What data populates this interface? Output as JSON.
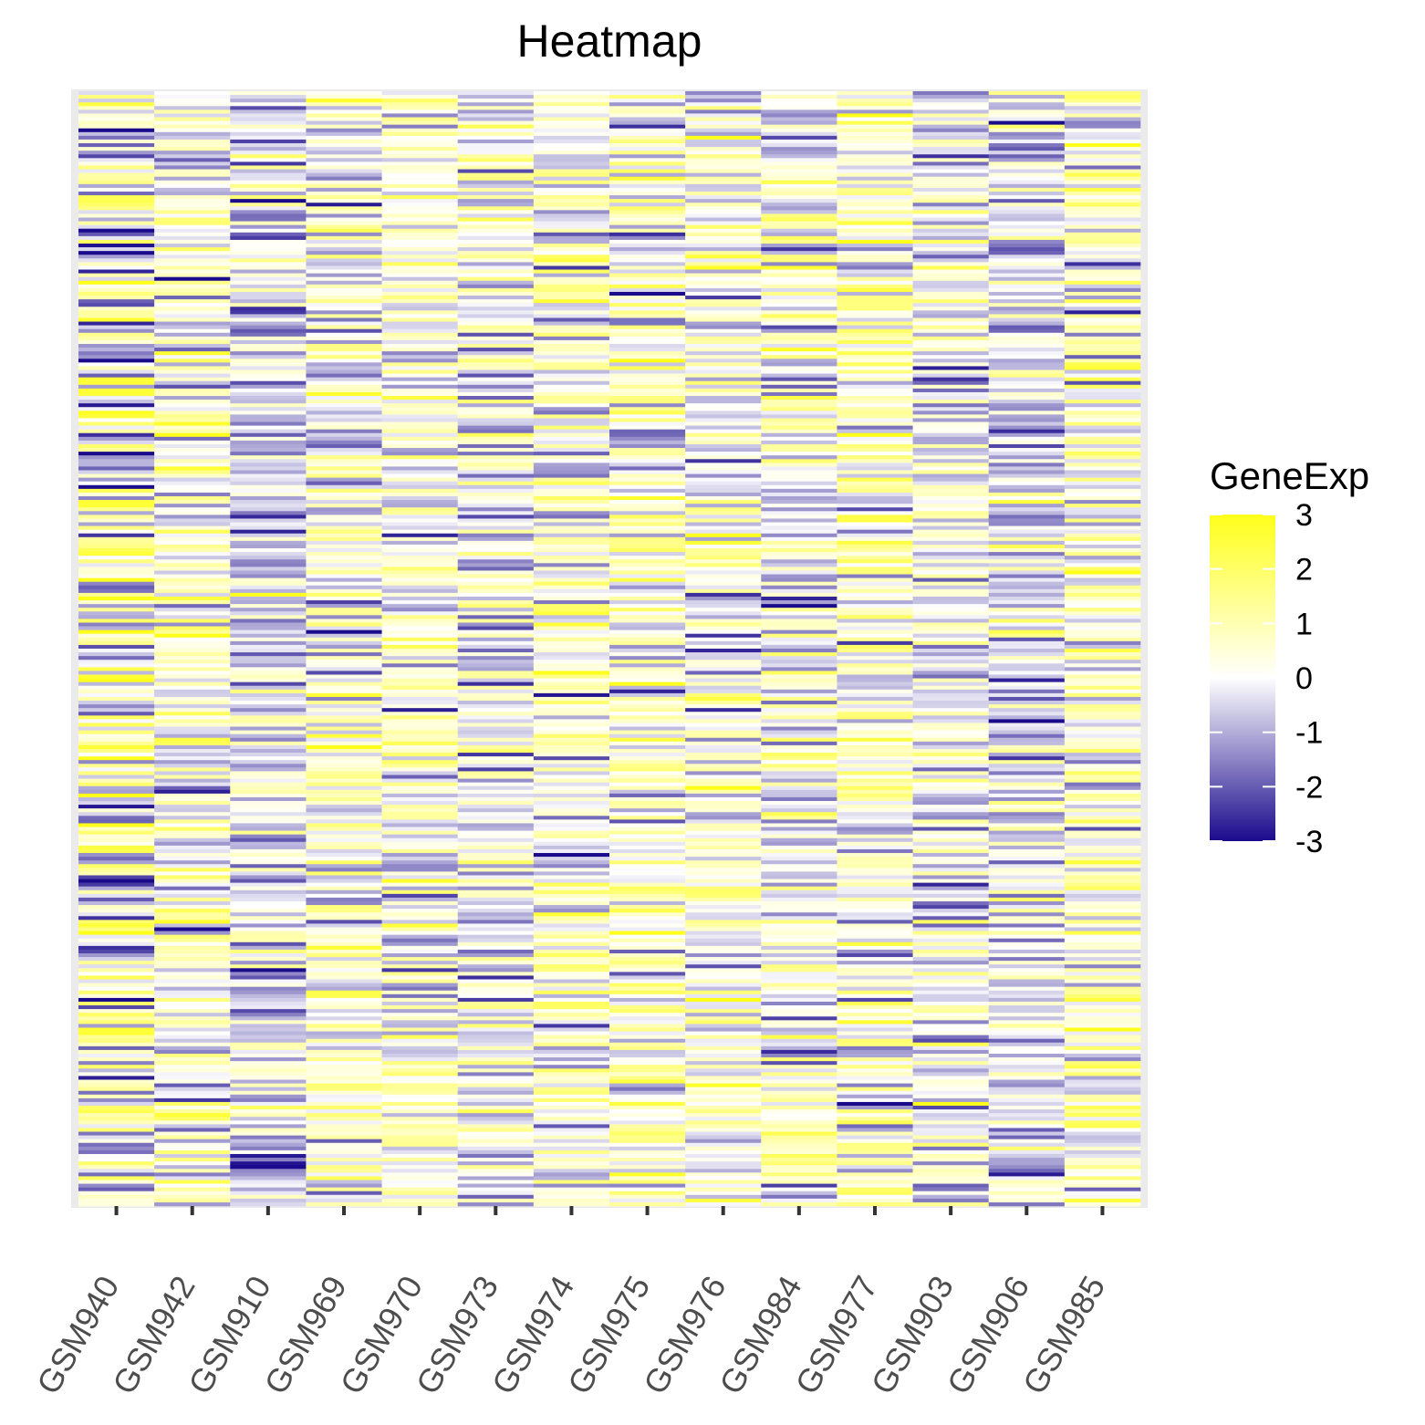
{
  "chart_data": {
    "type": "heatmap",
    "title": "Heatmap",
    "xlabel": "",
    "ylabel": "",
    "columns": [
      "GSM940",
      "GSM942",
      "GSM910",
      "GSM969",
      "GSM970",
      "GSM973",
      "GSM974",
      "GSM975",
      "GSM976",
      "GSM984",
      "GSM977",
      "GSM903",
      "GSM906",
      "GSM985"
    ],
    "rows_shown": "no row labels displayed (many gene rows)",
    "value_range": [
      -3,
      3
    ],
    "column_tendency": [
      0.1,
      0.3,
      -0.5,
      0.2,
      0.3,
      -0.2,
      0.3,
      0.4,
      0.1,
      0.1,
      0.3,
      0.0,
      -0.3,
      0.4
    ],
    "legend": {
      "title": "GeneExp",
      "ticks": [
        "3",
        "2",
        "1",
        "0",
        "-1",
        "-2",
        "-3"
      ],
      "tick_values": [
        3,
        2,
        1,
        0,
        -1,
        -2,
        -3
      ],
      "position": "right",
      "colors": {
        "low": "#1a0a8c",
        "mid": "#ffffff",
        "high": "#ffff1a"
      }
    },
    "grid": false
  }
}
